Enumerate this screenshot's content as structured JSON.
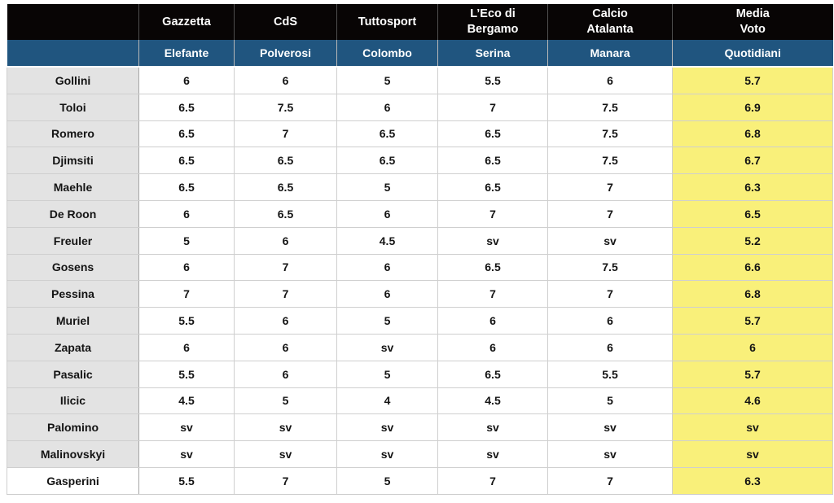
{
  "chart_data": {
    "type": "table",
    "header_newspapers": [
      "",
      "Gazzetta",
      "CdS",
      "Tuttosport",
      "L’Eco di\nBergamo",
      "Calcio\nAtalanta",
      "Media\nVoto"
    ],
    "header_journalists": [
      "",
      "Elefante",
      "Polverosi",
      "Colombo",
      "Serina",
      "Manara",
      "Quotidiani"
    ],
    "rows": [
      {
        "name": "Gollini",
        "values": [
          "6",
          "6",
          "5",
          "5.5",
          "6",
          "5.7"
        ]
      },
      {
        "name": "Toloi",
        "values": [
          "6.5",
          "7.5",
          "6",
          "7",
          "7.5",
          "6.9"
        ]
      },
      {
        "name": "Romero",
        "values": [
          "6.5",
          "7",
          "6.5",
          "6.5",
          "7.5",
          "6.8"
        ]
      },
      {
        "name": "Djimsiti",
        "values": [
          "6.5",
          "6.5",
          "6.5",
          "6.5",
          "7.5",
          "6.7"
        ]
      },
      {
        "name": "Maehle",
        "values": [
          "6.5",
          "6.5",
          "5",
          "6.5",
          "7",
          "6.3"
        ]
      },
      {
        "name": "De Roon",
        "values": [
          "6",
          "6.5",
          "6",
          "7",
          "7",
          "6.5"
        ]
      },
      {
        "name": "Freuler",
        "values": [
          "5",
          "6",
          "4.5",
          "sv",
          "sv",
          "5.2"
        ]
      },
      {
        "name": "Gosens",
        "values": [
          "6",
          "7",
          "6",
          "6.5",
          "7.5",
          "6.6"
        ]
      },
      {
        "name": "Pessina",
        "values": [
          "7",
          "7",
          "6",
          "7",
          "7",
          "6.8"
        ]
      },
      {
        "name": "Muriel",
        "values": [
          "5.5",
          "6",
          "5",
          "6",
          "6",
          "5.7"
        ]
      },
      {
        "name": "Zapata",
        "values": [
          "6",
          "6",
          "sv",
          "6",
          "6",
          "6"
        ]
      },
      {
        "name": "Pasalic",
        "values": [
          "5.5",
          "6",
          "5",
          "6.5",
          "5.5",
          "5.7"
        ]
      },
      {
        "name": "Ilicic",
        "values": [
          "4.5",
          "5",
          "4",
          "4.5",
          "5",
          "4.6"
        ]
      },
      {
        "name": "Palomino",
        "values": [
          "sv",
          "sv",
          "sv",
          "sv",
          "sv",
          "sv"
        ]
      },
      {
        "name": "Malinovskyi",
        "values": [
          "sv",
          "sv",
          "sv",
          "sv",
          "sv",
          "sv"
        ]
      },
      {
        "name": "Gasperini",
        "values": [
          "5.5",
          "7",
          "5",
          "7",
          "7",
          "6.3"
        ],
        "name_cell_white": true
      }
    ]
  },
  "colors": {
    "header_black": "#080505",
    "header_blue": "#20557f",
    "media_yellow": "#f9f07a",
    "name_gray": "#e3e3e3"
  }
}
